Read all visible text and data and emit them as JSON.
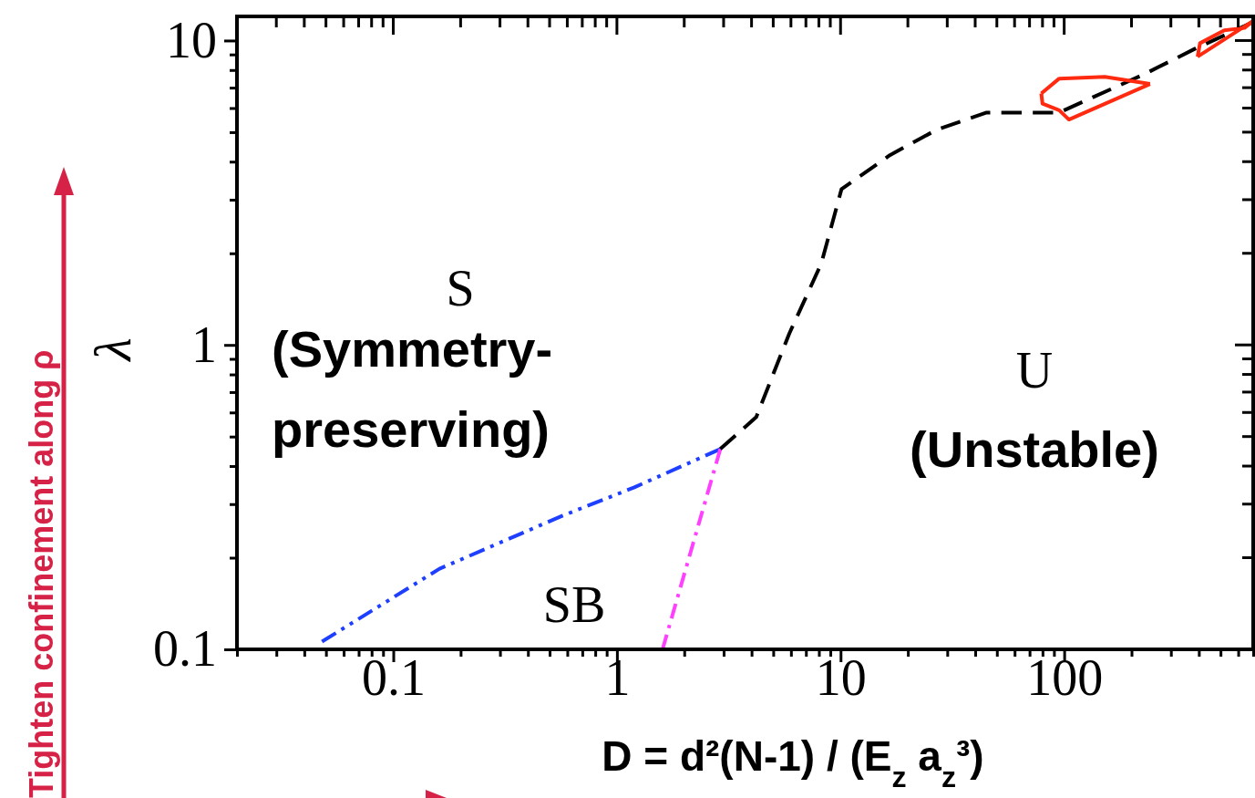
{
  "chart_data": {
    "type": "line",
    "xlabel": "D = d²(N-1) / (E$_{z}$ a$_{z}$³)",
    "ylabel": "λ",
    "log": "xy",
    "xlim": [
      0.02,
      700
    ],
    "ylim": [
      0.1,
      12
    ],
    "xticks": [
      {
        "value": 0.02,
        "label": null
      },
      {
        "value": 0.03,
        "label": null
      },
      {
        "value": 0.04,
        "label": null
      },
      {
        "value": 0.05,
        "label": null
      },
      {
        "value": 0.06,
        "label": null
      },
      {
        "value": 0.07,
        "label": null
      },
      {
        "value": 0.08,
        "label": null
      },
      {
        "value": 0.09,
        "label": null
      },
      0.1,
      {
        "value": 0.2,
        "label": null
      },
      {
        "value": 0.3,
        "label": null
      },
      {
        "value": 0.4,
        "label": null
      },
      {
        "value": 0.5,
        "label": null
      },
      {
        "value": 0.6,
        "label": null
      },
      {
        "value": 0.7,
        "label": null
      },
      {
        "value": 0.8,
        "label": null
      },
      {
        "value": 0.9,
        "label": null
      },
      1,
      {
        "value": 2,
        "label": null
      },
      {
        "value": 3,
        "label": null
      },
      {
        "value": 4,
        "label": null
      },
      {
        "value": 5,
        "label": null
      },
      {
        "value": 6,
        "label": null
      },
      {
        "value": 7,
        "label": null
      },
      {
        "value": 8,
        "label": null
      },
      {
        "value": 9,
        "label": null
      },
      10,
      {
        "value": 20,
        "label": null
      },
      {
        "value": 30,
        "label": null
      },
      {
        "value": 40,
        "label": null
      },
      {
        "value": 50,
        "label": null
      },
      {
        "value": 60,
        "label": null
      },
      {
        "value": 70,
        "label": null
      },
      {
        "value": 80,
        "label": null
      },
      {
        "value": 90,
        "label": null
      },
      100,
      {
        "value": 200,
        "label": null
      },
      {
        "value": 300,
        "label": null
      },
      {
        "value": 400,
        "label": null
      },
      {
        "value": 500,
        "label": null
      },
      {
        "value": 600,
        "label": null
      },
      {
        "value": 700,
        "label": null
      }
    ],
    "yticks": [
      0.1,
      {
        "value": 0.2,
        "label": null
      },
      {
        "value": 0.3,
        "label": null
      },
      {
        "value": 0.4,
        "label": null
      },
      {
        "value": 0.5,
        "label": null
      },
      {
        "value": 0.6,
        "label": null
      },
      {
        "value": 0.7,
        "label": null
      },
      {
        "value": 0.8,
        "label": null
      },
      {
        "value": 0.9,
        "label": null
      },
      1,
      {
        "value": 2,
        "label": null
      },
      {
        "value": 3,
        "label": null
      },
      {
        "value": 4,
        "label": null
      },
      {
        "value": 5,
        "label": null
      },
      {
        "value": 6,
        "label": null
      },
      {
        "value": 7,
        "label": null
      },
      {
        "value": 8,
        "label": null
      },
      {
        "value": 9,
        "label": null
      },
      10
    ],
    "grid": false,
    "marker": "none",
    "series": [
      {
        "color": "#1f3fff",
        "line_style": "dashdotdot",
        "x": [
          0.048,
          0.161,
          0.566,
          1.19,
          2.9
        ],
        "values": [
          0.106,
          0.184,
          0.274,
          0.34,
          0.455
        ]
      },
      {
        "color": "#ff40ff",
        "line_style": "dashdot",
        "x": [
          1.6,
          2.9
        ],
        "values": [
          0.1,
          0.455
        ]
      },
      {
        "color": "#000000",
        "line_style": "dashed",
        "x": [
          2.9,
          4.2,
          5.9,
          8.2,
          10.1,
          16.6,
          27,
          45,
          95,
          232,
          385,
          700
        ],
        "values": [
          0.455,
          0.58,
          1.09,
          1.85,
          3.25,
          4.2,
          5.1,
          5.8,
          5.8,
          7.8,
          9.4,
          11.5
        ]
      },
      {
        "color": "#ff2a10",
        "line_style": "solid",
        "x": [
          79,
          95,
          152,
          242
        ],
        "values": [
          6.7,
          7.5,
          7.6,
          7.2
        ]
      },
      {
        "color": "#ff2a10",
        "line_style": "solid",
        "x": [
          79,
          80,
          95,
          105,
          242
        ],
        "values": [
          6.7,
          6.2,
          5.9,
          5.5,
          7.2
        ]
      },
      {
        "color": "#ff2a10",
        "line_style": "solid",
        "x": [
          395,
          405,
          520,
          640,
          700
        ],
        "values": [
          8.85,
          9.8,
          10.8,
          11.0,
          11.6
        ]
      },
      {
        "color": "#ff2a10",
        "line_style": "solid",
        "x": [
          395,
          490,
          700
        ],
        "values": [
          8.85,
          9.8,
          11.6
        ]
      }
    ],
    "annotations": [
      "S",
      "(Symmetry-preserving)",
      "SB",
      "U",
      "(Unstable)",
      "Tighten confinement along ρ"
    ]
  }
}
